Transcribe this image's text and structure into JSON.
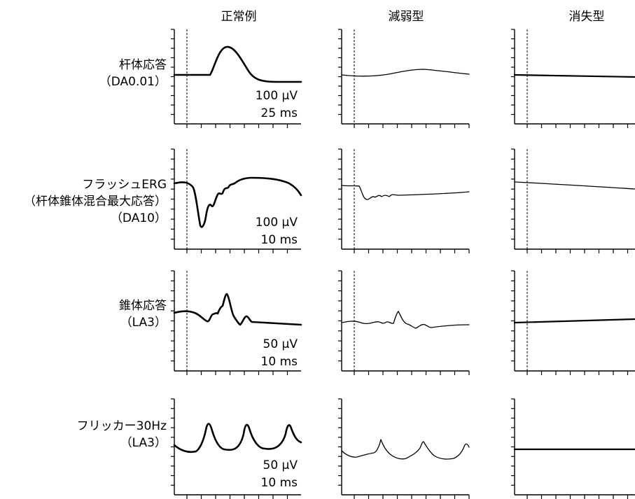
{
  "columns": [
    {
      "id": "normal",
      "title": "正常例"
    },
    {
      "id": "reduced",
      "title": "減弱型"
    },
    {
      "id": "extinguished",
      "title": "消失型"
    }
  ],
  "rows": [
    {
      "id": "rod",
      "label_lines": [
        "杆体応答",
        "（DA0.01）"
      ],
      "scale_amp": "100 μV",
      "scale_time": "25 ms",
      "stimulus_marker": true
    },
    {
      "id": "flash",
      "label_lines": [
        "フラッシュERG",
        "（杆体錐体混合最大応答）",
        "（DA10）"
      ],
      "scale_amp": "100 μV",
      "scale_time": "10 ms",
      "stimulus_marker": true
    },
    {
      "id": "cone",
      "label_lines": [
        "錐体応答",
        "（LA3）"
      ],
      "scale_amp": "50 μV",
      "scale_time": "10 ms",
      "stimulus_marker": true
    },
    {
      "id": "flicker",
      "label_lines": [
        "フリッカー30Hz",
        "（LA3）"
      ],
      "scale_amp": "50 μV",
      "scale_time": "10 ms",
      "stimulus_marker": false
    }
  ],
  "icons": {
    "axes": "axis-frame-icon",
    "stimulus": "dashed-stimulus-marker-icon"
  }
}
